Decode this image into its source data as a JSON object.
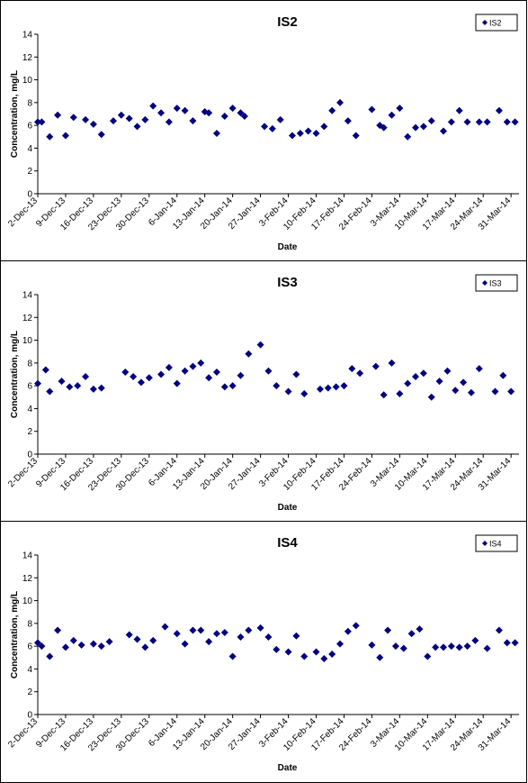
{
  "chart_data": [
    {
      "type": "scatter",
      "title": "IS2",
      "xlabel": "Date",
      "ylabel": "Concentration, mg/L",
      "ylim": [
        0,
        14
      ],
      "yticks": [
        0,
        2,
        4,
        6,
        8,
        10,
        12,
        14
      ],
      "xlim": [
        "2-Dec-13",
        "2-Apr-14"
      ],
      "xticks": [
        "2-Dec-13",
        "9-Dec-13",
        "16-Dec-13",
        "23-Dec-13",
        "30-Dec-13",
        "6-Jan-14",
        "13-Jan-14",
        "20-Jan-14",
        "27-Jan-14",
        "3-Feb-14",
        "10-Feb-14",
        "17-Feb-14",
        "24-Feb-14",
        "3-Mar-14",
        "10-Mar-14",
        "17-Mar-14",
        "24-Mar-14",
        "31-Mar-14"
      ],
      "grid": false,
      "legend_position": "top-right",
      "marker_color": "#000080",
      "series": [
        {
          "name": "IS2",
          "x": [
            "2-Dec-13",
            "3-Dec-13",
            "5-Dec-13",
            "7-Dec-13",
            "9-Dec-13",
            "11-Dec-13",
            "14-Dec-13",
            "16-Dec-13",
            "18-Dec-13",
            "21-Dec-13",
            "23-Dec-13",
            "25-Dec-13",
            "27-Dec-13",
            "29-Dec-13",
            "31-Dec-13",
            "2-Jan-14",
            "4-Jan-14",
            "6-Jan-14",
            "8-Jan-14",
            "10-Jan-14",
            "13-Jan-14",
            "14-Jan-14",
            "16-Jan-14",
            "18-Jan-14",
            "20-Jan-14",
            "22-Jan-14",
            "23-Jan-14",
            "28-Jan-14",
            "30-Jan-14",
            "1-Feb-14",
            "4-Feb-14",
            "6-Feb-14",
            "8-Feb-14",
            "10-Feb-14",
            "12-Feb-14",
            "14-Feb-14",
            "16-Feb-14",
            "18-Feb-14",
            "20-Feb-14",
            "24-Feb-14",
            "26-Feb-14",
            "27-Feb-14",
            "1-Mar-14",
            "3-Mar-14",
            "5-Mar-14",
            "7-Mar-14",
            "9-Mar-14",
            "11-Mar-14",
            "14-Mar-14",
            "16-Mar-14",
            "18-Mar-14",
            "20-Mar-14",
            "23-Mar-14",
            "25-Mar-14",
            "28-Mar-14",
            "30-Mar-14",
            "1-Apr-14"
          ],
          "y": [
            6.3,
            6.3,
            5.0,
            6.9,
            5.1,
            6.7,
            6.5,
            6.1,
            5.2,
            6.4,
            6.9,
            6.6,
            5.9,
            6.5,
            7.7,
            7.1,
            6.3,
            7.5,
            7.3,
            6.4,
            7.2,
            7.1,
            5.3,
            6.8,
            7.5,
            7.1,
            6.8,
            5.9,
            5.7,
            6.5,
            5.1,
            5.3,
            5.5,
            5.3,
            5.9,
            7.3,
            8.0,
            6.4,
            5.1,
            7.4,
            6.0,
            5.8,
            6.9,
            7.5,
            5.0,
            5.8,
            5.9,
            6.4,
            5.5,
            6.3,
            7.3,
            6.3,
            6.3,
            6.3,
            7.3,
            6.3,
            6.3
          ]
        }
      ]
    },
    {
      "type": "scatter",
      "title": "IS3",
      "xlabel": "Date",
      "ylabel": "Concentration, mg/L",
      "ylim": [
        0,
        14
      ],
      "yticks": [
        0,
        2,
        4,
        6,
        8,
        10,
        12,
        14
      ],
      "xlim": [
        "2-Dec-13",
        "2-Apr-14"
      ],
      "xticks": [
        "2-Dec-13",
        "9-Dec-13",
        "16-Dec-13",
        "23-Dec-13",
        "30-Dec-13",
        "6-Jan-14",
        "13-Jan-14",
        "20-Jan-14",
        "27-Jan-14",
        "3-Feb-14",
        "10-Feb-14",
        "17-Feb-14",
        "24-Feb-14",
        "3-Mar-14",
        "10-Mar-14",
        "17-Mar-14",
        "24-Mar-14",
        "31-Mar-14"
      ],
      "grid": false,
      "legend_position": "top-right",
      "marker_color": "#000080",
      "series": [
        {
          "name": "IS3",
          "x": [
            "2-Dec-13",
            "4-Dec-13",
            "5-Dec-13",
            "8-Dec-13",
            "10-Dec-13",
            "12-Dec-13",
            "14-Dec-13",
            "16-Dec-13",
            "18-Dec-13",
            "24-Dec-13",
            "26-Dec-13",
            "28-Dec-13",
            "30-Dec-13",
            "2-Jan-14",
            "4-Jan-14",
            "6-Jan-14",
            "8-Jan-14",
            "10-Jan-14",
            "12-Jan-14",
            "14-Jan-14",
            "16-Jan-14",
            "18-Jan-14",
            "20-Jan-14",
            "22-Jan-14",
            "24-Jan-14",
            "27-Jan-14",
            "29-Jan-14",
            "31-Jan-14",
            "3-Feb-14",
            "5-Feb-14",
            "7-Feb-14",
            "11-Feb-14",
            "13-Feb-14",
            "15-Feb-14",
            "17-Feb-14",
            "19-Feb-14",
            "21-Feb-14",
            "25-Feb-14",
            "27-Feb-14",
            "29-Feb-14",
            "3-Mar-14",
            "5-Mar-14",
            "7-Mar-14",
            "9-Mar-14",
            "11-Mar-14",
            "13-Mar-14",
            "15-Mar-14",
            "17-Mar-14",
            "19-Mar-14",
            "21-Mar-14",
            "23-Mar-14",
            "27-Mar-14",
            "29-Mar-14",
            "31-Mar-14"
          ],
          "y": [
            6.2,
            7.4,
            5.5,
            6.4,
            5.9,
            6.0,
            6.8,
            5.7,
            5.8,
            7.2,
            6.8,
            6.3,
            6.7,
            7.0,
            7.6,
            6.2,
            7.3,
            7.7,
            8.0,
            6.7,
            7.2,
            5.9,
            6.0,
            6.9,
            8.8,
            9.6,
            7.3,
            6.0,
            5.5,
            7.0,
            5.3,
            5.7,
            5.8,
            5.9,
            6.0,
            7.5,
            7.1,
            7.7,
            5.2,
            8.0,
            5.3,
            6.2,
            6.8,
            7.1,
            5.0,
            6.4,
            7.3,
            5.6,
            6.3,
            5.4,
            7.5,
            5.5,
            6.9,
            5.5
          ]
        }
      ]
    },
    {
      "type": "scatter",
      "title": "IS4",
      "xlabel": "Date",
      "ylabel": "Concentration, mg/L",
      "ylim": [
        0,
        14
      ],
      "yticks": [
        0,
        2,
        4,
        6,
        8,
        10,
        12,
        14
      ],
      "xlim": [
        "2-Dec-13",
        "2-Apr-14"
      ],
      "xticks": [
        "2-Dec-13",
        "9-Dec-13",
        "16-Dec-13",
        "23-Dec-13",
        "30-Dec-13",
        "6-Jan-14",
        "13-Jan-14",
        "20-Jan-14",
        "27-Jan-14",
        "3-Feb-14",
        "10-Feb-14",
        "17-Feb-14",
        "24-Feb-14",
        "3-Mar-14",
        "10-Mar-14",
        "17-Mar-14",
        "24-Mar-14",
        "31-Mar-14"
      ],
      "grid": false,
      "legend_position": "top-right",
      "marker_color": "#000080",
      "series": [
        {
          "name": "IS4",
          "x": [
            "2-Dec-13",
            "3-Dec-13",
            "5-Dec-13",
            "7-Dec-13",
            "9-Dec-13",
            "11-Dec-13",
            "13-Dec-13",
            "16-Dec-13",
            "18-Dec-13",
            "20-Dec-13",
            "25-Dec-13",
            "27-Dec-13",
            "29-Dec-13",
            "31-Dec-13",
            "3-Jan-14",
            "6-Jan-14",
            "8-Jan-14",
            "10-Jan-14",
            "12-Jan-14",
            "14-Jan-14",
            "16-Jan-14",
            "18-Jan-14",
            "20-Jan-14",
            "22-Jan-14",
            "24-Jan-14",
            "27-Jan-14",
            "29-Jan-14",
            "31-Jan-14",
            "3-Feb-14",
            "5-Feb-14",
            "7-Feb-14",
            "10-Feb-14",
            "12-Feb-14",
            "14-Feb-14",
            "16-Feb-14",
            "18-Feb-14",
            "20-Feb-14",
            "24-Feb-14",
            "26-Feb-14",
            "28-Feb-14",
            "2-Mar-14",
            "4-Mar-14",
            "6-Mar-14",
            "8-Mar-14",
            "10-Mar-14",
            "12-Mar-14",
            "14-Mar-14",
            "16-Mar-14",
            "18-Mar-14",
            "20-Mar-14",
            "22-Mar-14",
            "25-Mar-14",
            "28-Mar-14",
            "30-Mar-14",
            "1-Apr-14"
          ],
          "y": [
            6.3,
            6.0,
            5.1,
            7.4,
            5.9,
            6.5,
            6.1,
            6.2,
            6.0,
            6.4,
            7.0,
            6.6,
            5.9,
            6.5,
            7.7,
            7.1,
            6.2,
            7.4,
            7.4,
            6.4,
            7.1,
            7.2,
            5.1,
            6.8,
            7.4,
            7.6,
            6.8,
            5.7,
            5.5,
            6.9,
            5.1,
            5.5,
            4.9,
            5.3,
            6.2,
            7.3,
            7.8,
            6.1,
            5.0,
            7.4,
            6.0,
            5.8,
            7.1,
            7.5,
            5.1,
            5.9,
            5.9,
            6.0,
            5.9,
            6.0,
            6.5,
            5.8,
            7.4,
            6.3,
            6.3
          ]
        }
      ]
    }
  ]
}
